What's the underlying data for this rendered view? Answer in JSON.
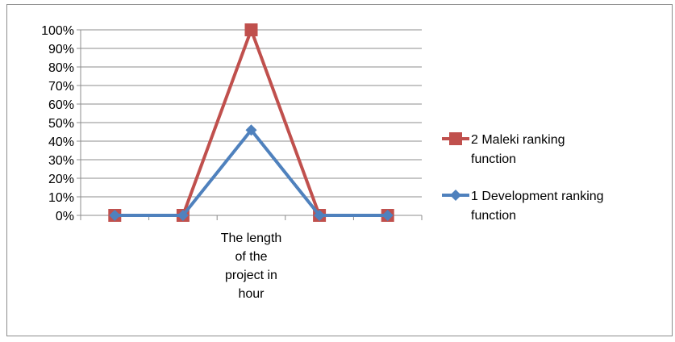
{
  "chart_data": {
    "type": "line",
    "categories": [
      "",
      "",
      "The length of the project in hour",
      "",
      ""
    ],
    "series": [
      {
        "name": "2 Maleki ranking function",
        "values": [
          0,
          0,
          100,
          0,
          0
        ],
        "color": "#c0504d",
        "marker": "square"
      },
      {
        "name": "1 Development ranking function",
        "values": [
          0,
          0,
          46,
          0,
          0
        ],
        "color": "#4f81bd",
        "marker": "diamond"
      }
    ],
    "y_ticks": [
      "0%",
      "10%",
      "20%",
      "30%",
      "40%",
      "50%",
      "60%",
      "70%",
      "80%",
      "90%",
      "100%"
    ],
    "ylim": [
      0,
      100
    ],
    "grid": true,
    "legend": "right"
  }
}
